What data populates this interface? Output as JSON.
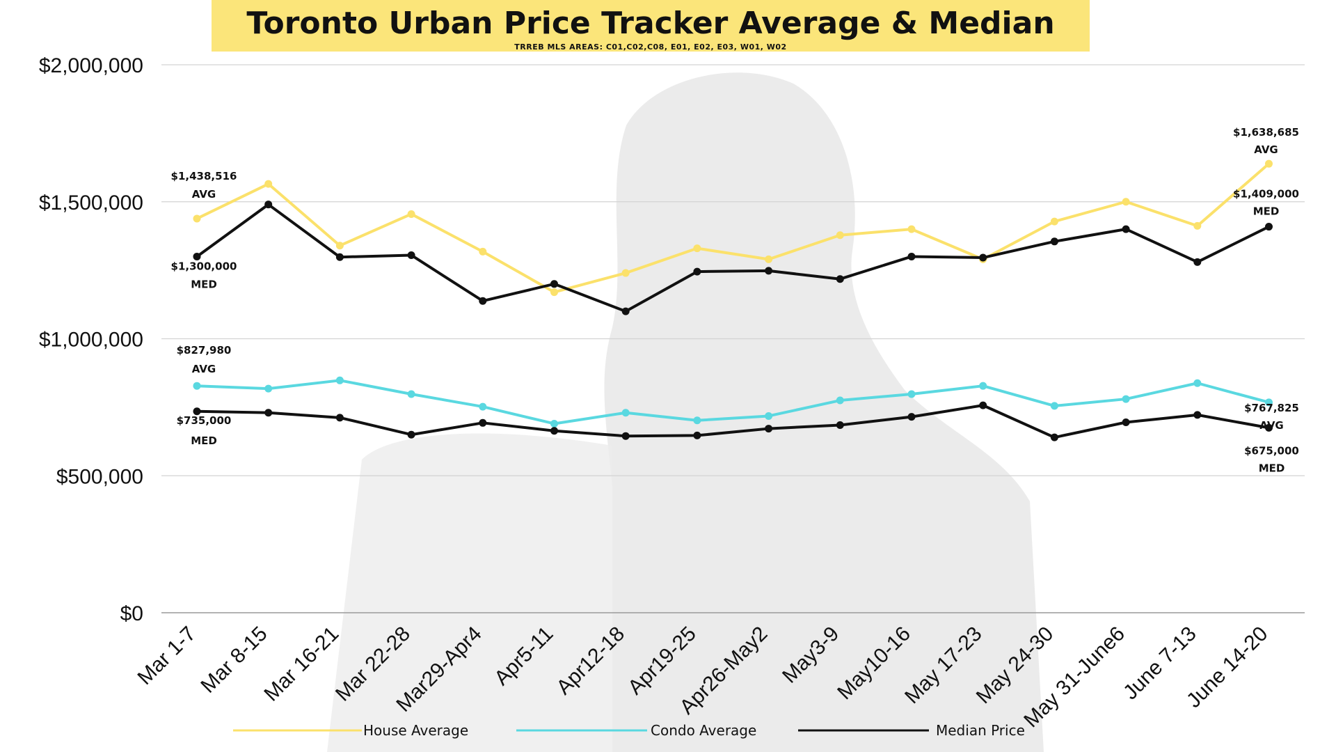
{
  "title": "Toronto Urban Price Tracker Average & Median",
  "subtitle": "TRREB MLS AREAS: C01,C02,C08, E01, E02, E03, W01, W02",
  "colors": {
    "house": "#fbe16b",
    "condo": "#5ad8e0",
    "median": "#111111",
    "banner": "#fbe57a",
    "grid": "#d3d3d3"
  },
  "chart_data": {
    "type": "line",
    "categories": [
      "Mar 1-7",
      "Mar 8-15",
      "Mar 16-21",
      "Mar 22-28",
      "Mar29-Apr4",
      "Apr5-11",
      "Apr12-18",
      "Apr19-25",
      "Apr26-May2",
      "May3-9",
      "May10-16",
      "May 17-23",
      "May 24-30",
      "May 31-June6",
      "June 7-13",
      "June 14-20"
    ],
    "series": [
      {
        "name": "House Average",
        "key": "house",
        "values": [
          1438516,
          1565000,
          1340000,
          1455000,
          1318000,
          1170000,
          1240000,
          1330000,
          1290000,
          1378000,
          1400000,
          1290000,
          1428000,
          1500000,
          1412000,
          1638685
        ]
      },
      {
        "name": "Condo Average",
        "key": "condo",
        "values": [
          827980,
          818000,
          848000,
          798000,
          752000,
          690000,
          730000,
          702000,
          718000,
          775000,
          798000,
          828000,
          755000,
          780000,
          838000,
          767825
        ]
      },
      {
        "name": "Median Price",
        "key": "median_house",
        "values": [
          1300000,
          1490000,
          1298000,
          1305000,
          1138000,
          1200000,
          1100000,
          1245000,
          1248000,
          1218000,
          1300000,
          1296000,
          1355000,
          1400000,
          1280000,
          1409000
        ]
      },
      {
        "name": "",
        "key": "median_condo",
        "values": [
          735000,
          730000,
          712000,
          650000,
          693000,
          664000,
          645000,
          647000,
          672000,
          685000,
          715000,
          757000,
          640000,
          695000,
          722000,
          675000
        ]
      }
    ],
    "yticks": [
      "$0",
      "$500,000",
      "$1,000,000",
      "$1,500,000",
      "$2,000,000"
    ],
    "ylim": [
      0,
      2000000
    ],
    "grid": true,
    "legend": {
      "placement": "bottom",
      "entries": [
        "House Average",
        "Condo Average",
        "Median Price"
      ]
    },
    "annotations": [
      {
        "series": "house",
        "index": 0,
        "value": "$1,438,516",
        "tag": "AVG"
      },
      {
        "series": "median_house",
        "index": 0,
        "value": "$1,300,000",
        "tag": "MED"
      },
      {
        "series": "condo",
        "index": 0,
        "value": "$827,980",
        "tag": "AVG"
      },
      {
        "series": "median_condo",
        "index": 0,
        "value": "$735,000",
        "tag": "MED"
      },
      {
        "series": "house",
        "index": 15,
        "value": "$1,638,685",
        "tag": "AVG"
      },
      {
        "series": "median_house",
        "index": 15,
        "value": "$1,409,000",
        "tag": "MED"
      },
      {
        "series": "condo",
        "index": 15,
        "value": "$767,825",
        "tag": "AVG"
      },
      {
        "series": "median_condo",
        "index": 15,
        "value": "$675,000",
        "tag": "MED"
      }
    ]
  }
}
